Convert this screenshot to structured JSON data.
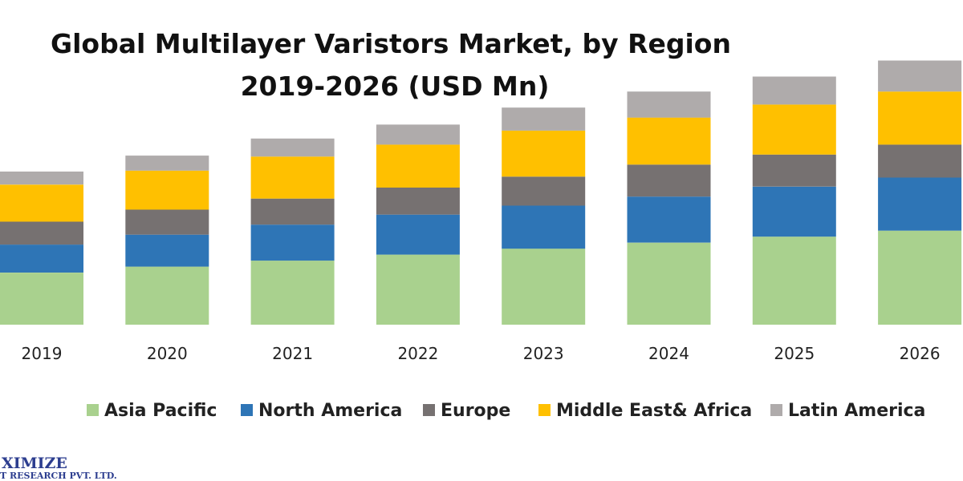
{
  "chart_data": {
    "type": "bar",
    "stacked": true,
    "title_line1": "Global Multilayer Varistors Market, by Region",
    "title_line2": "2019-2026 (USD Mn)",
    "categories": [
      "2019",
      "2020",
      "2021",
      "2022",
      "2023",
      "2024",
      "2025",
      "2026"
    ],
    "series": [
      {
        "name": "Asia Pacific",
        "color": "#a9d18e",
        "values": [
          52,
          58,
          64,
          70,
          76,
          82,
          88,
          94
        ]
      },
      {
        "name": "North America",
        "color": "#2e75b6",
        "values": [
          28,
          32,
          36,
          40,
          43,
          46,
          50,
          53
        ]
      },
      {
        "name": "Europe",
        "color": "#767171",
        "values": [
          23,
          25,
          26,
          27,
          29,
          32,
          32,
          33
        ]
      },
      {
        "name": "Middle East& Africa",
        "color": "#ffc000",
        "values": [
          37,
          39,
          42,
          43,
          46,
          47,
          50,
          53
        ]
      },
      {
        "name": "Latin America",
        "color": "#afabab",
        "values": [
          13,
          15,
          18,
          20,
          23,
          26,
          28,
          31
        ]
      }
    ],
    "ylim": [
      0,
      270
    ],
    "y_axis_visible": false,
    "grid": false,
    "legend_position": "bottom"
  },
  "watermark": {
    "line1": "XIMIZE",
    "line2": "T RESEARCH PVT. LTD."
  }
}
